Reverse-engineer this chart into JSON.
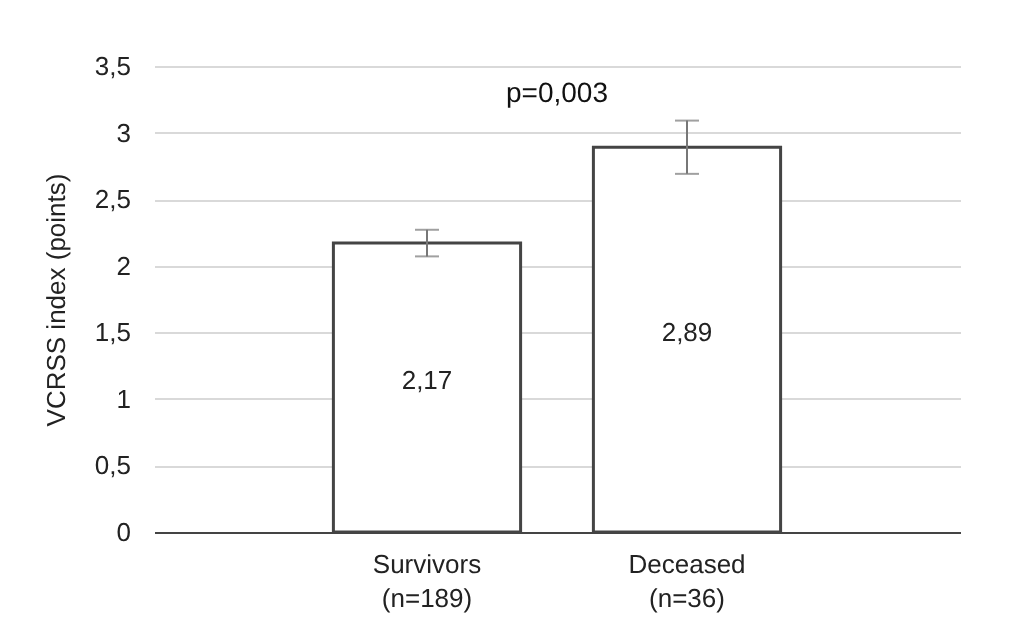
{
  "chart_data": {
    "type": "bar",
    "ylabel": "VCRSS index (points)",
    "categories": [
      "Survivors\n(n=189)",
      "Deceased\n(n=36)"
    ],
    "values": [
      2.17,
      2.89
    ],
    "errors": [
      0.1,
      0.2
    ],
    "value_labels": [
      "2,17",
      "2,89"
    ],
    "color": "#ffffff",
    "ylim": [
      0,
      3.5
    ],
    "yticks": [
      0,
      {
        "value": 0.5,
        "label": "0,5"
      },
      1,
      {
        "value": 1.5,
        "label": "1,5"
      },
      2,
      {
        "value": 2.5,
        "label": "2,5"
      },
      3,
      {
        "value": 3.5,
        "label": "3,5"
      }
    ],
    "grid": "y",
    "annotations": [
      "p=0,003"
    ]
  }
}
